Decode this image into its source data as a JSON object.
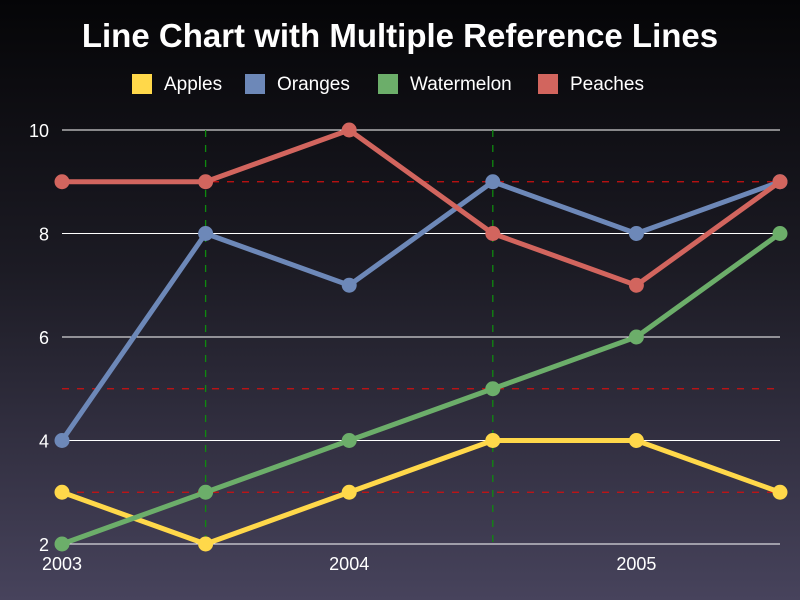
{
  "chart_data": {
    "type": "line",
    "title": "Line Chart with Multiple Reference Lines",
    "xlabel": "",
    "ylabel": "",
    "x": [
      2003.0,
      2003.5,
      2004.0,
      2004.5,
      2005.0,
      2005.5
    ],
    "xticks": [
      2003,
      2004,
      2005
    ],
    "xlim": [
      2003.0,
      2005.5
    ],
    "yticks": [
      2,
      4,
      6,
      8,
      10
    ],
    "ylim": [
      2,
      10
    ],
    "grid": "horizontal",
    "legend_position": "top",
    "series": [
      {
        "name": "Apples",
        "color": "#ffd84a",
        "values": [
          3,
          2,
          3,
          4,
          4,
          3
        ]
      },
      {
        "name": "Oranges",
        "color": "#6d88b8",
        "values": [
          4,
          8,
          7,
          9,
          8,
          9
        ]
      },
      {
        "name": "Watermelon",
        "color": "#6cae6a",
        "values": [
          2,
          3,
          4,
          5,
          6,
          8
        ]
      },
      {
        "name": "Peaches",
        "color": "#d2655e",
        "values": [
          9,
          9,
          10,
          8,
          7,
          9
        ]
      }
    ],
    "reference_lines": {
      "horizontal": {
        "values": [
          3,
          5,
          9
        ],
        "color": "#cc1111",
        "style": "dashed"
      },
      "vertical": {
        "values": [
          2003.5,
          2004.5
        ],
        "color": "#0f8a0f",
        "style": "dashed"
      }
    }
  }
}
